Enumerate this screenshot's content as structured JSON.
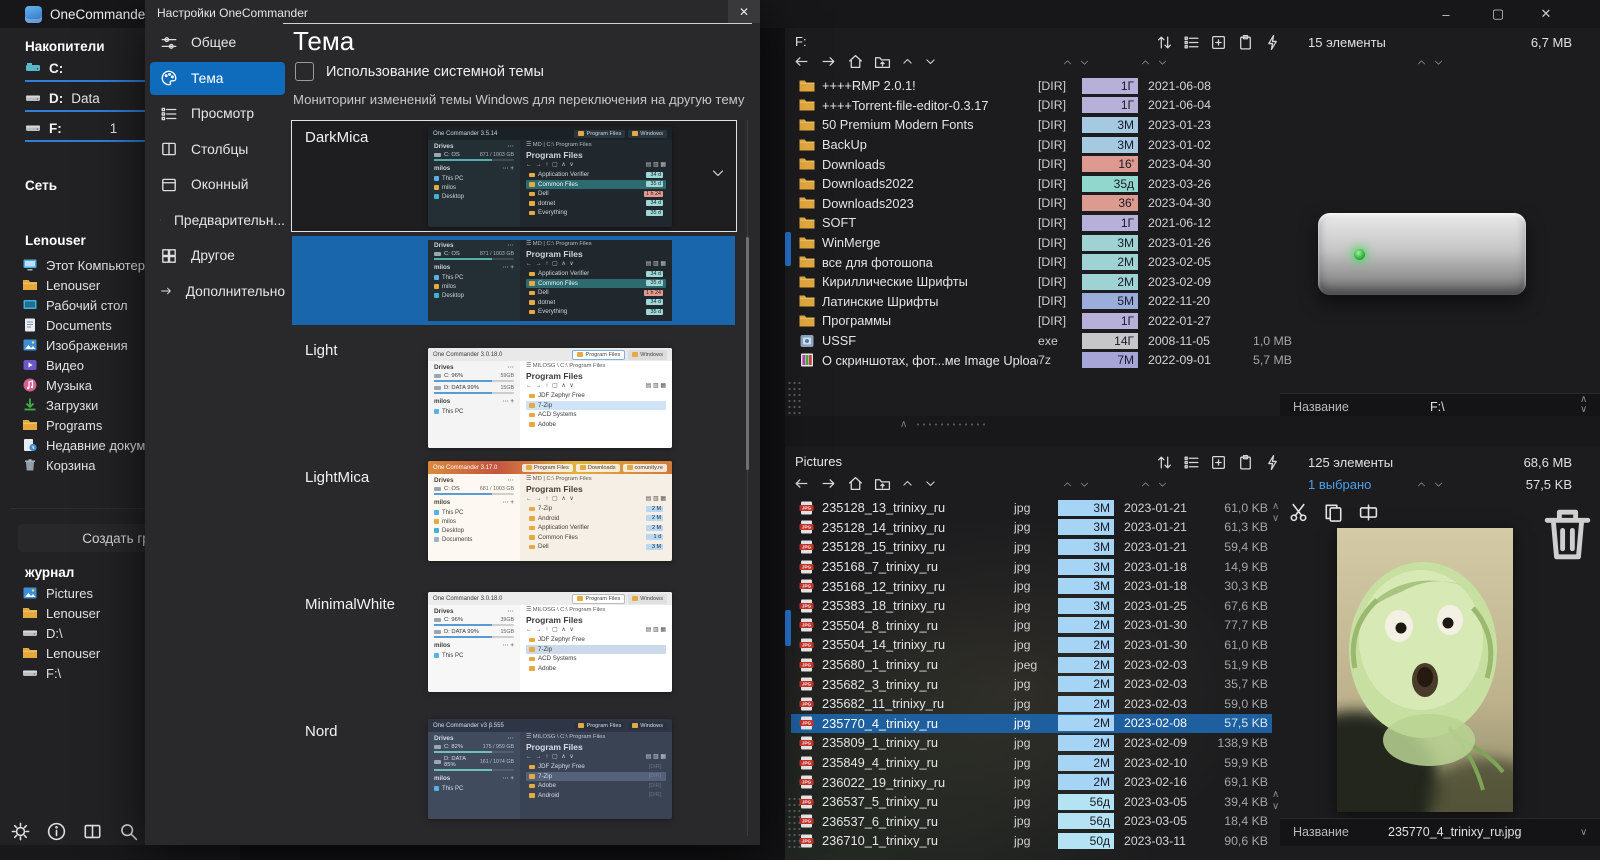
{
  "window": {
    "title": "OneCommander",
    "minimize": "–",
    "maximize": "▢",
    "close": "✕"
  },
  "sidebar": {
    "drives_header": "Накопители",
    "drives": [
      {
        "letter": "C:",
        "label": "",
        "extra": "",
        "icon": "drivec",
        "fill": 95
      },
      {
        "letter": "D:",
        "label": "Data",
        "extra": "",
        "icon": "drive",
        "fill": 97
      },
      {
        "letter": "F:",
        "label": "",
        "extra": "1",
        "icon": "drive",
        "fill": 90
      }
    ],
    "network_header": "Сеть",
    "user_header": "Lenouser",
    "items": [
      {
        "icon": "computer",
        "label": "Этот Компьютер"
      },
      {
        "icon": "folder",
        "label": "Lenouser"
      },
      {
        "icon": "desktop",
        "label": "Рабочий стол"
      },
      {
        "icon": "doc",
        "label": "Documents"
      },
      {
        "icon": "pic",
        "label": "Изображения"
      },
      {
        "icon": "video",
        "label": "Видео"
      },
      {
        "icon": "music",
        "label": "Музыка"
      },
      {
        "icon": "down",
        "label": "Загрузки"
      },
      {
        "icon": "folder",
        "label": "Programs"
      },
      {
        "icon": "recent",
        "label": "Недавние документ"
      },
      {
        "icon": "bin",
        "label": "Корзина"
      }
    ],
    "create_group_label": "Создать груп",
    "journal_header": "журнал",
    "journal_items": [
      {
        "icon": "pic",
        "label": "Pictures"
      },
      {
        "icon": "folder",
        "label": "Lenouser"
      },
      {
        "icon": "drive",
        "label": "D:\\"
      },
      {
        "icon": "folder",
        "label": "Lenouser"
      },
      {
        "icon": "drive",
        "label": "F:\\"
      }
    ],
    "footer_icons": [
      "gear",
      "info",
      "split",
      "search",
      "robot",
      "newtab"
    ]
  },
  "dialog": {
    "title": "Настройки OneCommander",
    "close": "✕",
    "tabs": [
      {
        "label": "Общее",
        "icon": "sliders",
        "selected": false
      },
      {
        "label": "Тема",
        "icon": "palette",
        "selected": true
      },
      {
        "label": "Просмотр",
        "icon": "viewlist",
        "selected": false
      },
      {
        "label": "Столбцы",
        "icon": "columns",
        "selected": false
      },
      {
        "label": "Оконный",
        "icon": "windowpane",
        "selected": false
      },
      {
        "label": "Предварительн...",
        "icon": "eye",
        "selected": false
      },
      {
        "label": "Другое",
        "icon": "grid4",
        "selected": false
      },
      {
        "label": "Дополнительно",
        "icon": "arrowr",
        "selected": false
      }
    ],
    "heading": "Тема",
    "checkbox_label": "Использование системной темы",
    "checkbox_checked": false,
    "caption": "Мониторинг изменений темы Windows для переключения на другую тему",
    "themes": [
      {
        "name": "DarkMica",
        "variant": "dark",
        "style": "boxed"
      },
      {
        "name": "",
        "variant": "dark",
        "style": "selected"
      },
      {
        "name": "Light",
        "variant": "light",
        "style": "plain"
      },
      {
        "name": "LightMica",
        "variant": "lightmica",
        "style": "plain"
      },
      {
        "name": "MinimalWhite",
        "variant": "minimal",
        "style": "plain"
      },
      {
        "name": "Nord",
        "variant": "nord",
        "style": "plain"
      }
    ],
    "previews": {
      "dark": {
        "app": "One Commander 3.5.14",
        "tabs": [
          "Program Files",
          "Windows"
        ],
        "path": "MD | C:\\ Program Files",
        "folder": "Program Files",
        "drives_label": "Drives",
        "drives": [
          [
            "C: OS",
            "871 / 1003 GB"
          ]
        ],
        "user": "milos",
        "items": [
          [
            "pc",
            "This PC"
          ],
          [
            "folder",
            "milos"
          ],
          [
            "desktop",
            "Desktop"
          ]
        ],
        "files": [
          {
            "n": "Application Verifier",
            "b": "34 d",
            "c": "teal"
          },
          {
            "n": "Common Files",
            "b": "35 d",
            "c": "teal",
            "sel": true
          },
          {
            "n": "Dell",
            "b": "1 h 24",
            "c": "red"
          },
          {
            "n": "dotnet",
            "b": "34 d",
            "c": "teal"
          },
          {
            "n": "Everything",
            "b": "35 d",
            "c": "teal"
          }
        ]
      },
      "light": {
        "app": "One Commander 3.0.18.0",
        "tabs": [
          "Program Files",
          "Windows"
        ],
        "path": "MILOSG \\ C:\\ Program Files",
        "folder": "Program Files",
        "drives_label": "Drives",
        "drives": [
          [
            "C:  96%",
            "59GB"
          ],
          [
            "D:  DATA  99%",
            "15GB"
          ]
        ],
        "user": "milos",
        "items": [
          [
            "pc",
            "This PC"
          ]
        ],
        "files": [
          {
            "n": "JDF Zephyr Free"
          },
          {
            "n": "7-Zip",
            "sel": true
          },
          {
            "n": "ACD Systems"
          },
          {
            "n": "Adobe"
          }
        ]
      },
      "lightmica": {
        "app": "One Commander 3.17.0",
        "tabs": [
          "Program Files",
          "Downloads",
          "comunity.re"
        ],
        "path": "MD | C:\\ Program Files",
        "folder": "Program Files",
        "drives_label": "Drives",
        "drives": [
          [
            "C: OS",
            "681 / 1003 GB"
          ]
        ],
        "user": "milos",
        "items": [
          [
            "pc",
            "This PC"
          ],
          [
            "folder",
            "milos"
          ],
          [
            "desktop",
            "Desktop"
          ],
          [
            "docs",
            "Documents"
          ]
        ],
        "files": [
          {
            "n": "7-Zip",
            "b": "2 M",
            "c": "blue"
          },
          {
            "n": "Android",
            "b": "2 M",
            "c": "blue"
          },
          {
            "n": "Application Verifier",
            "b": "2 M",
            "c": "blue"
          },
          {
            "n": "Common Files",
            "b": "1 d",
            "c": "blue"
          },
          {
            "n": "Dell",
            "b": "3 M",
            "c": "blue"
          }
        ]
      },
      "minimal": {
        "app": "One Commander 3.0.18.0",
        "tabs": [
          "Program Files",
          "Windows"
        ],
        "path": "MILOSG \\ C:\\ Program Files",
        "folder": "Program Files",
        "drives_label": "Drives",
        "drives": [
          [
            "C:  96%",
            "39GB"
          ],
          [
            "D:  DATA  99%",
            "15GB"
          ]
        ],
        "user": "milos",
        "items": [
          [
            "pc",
            "This PC"
          ]
        ],
        "files": [
          {
            "n": "JDF Zephyr Free"
          },
          {
            "n": "7-Zip",
            "sel": true
          },
          {
            "n": "ACD Systems"
          },
          {
            "n": "Adobe"
          }
        ]
      },
      "nord": {
        "app": "One Commander v3 β.555",
        "tabs": [
          "Program Files",
          "Windows"
        ],
        "path": "MILOSG \\ C:\\ Program Files",
        "folder": "Program Files",
        "drives_label": "Drives",
        "drives": [
          [
            "C:  82%",
            "175 / 959 GB"
          ],
          [
            "D:  DATA  85%",
            "161 / 1074 GB"
          ]
        ],
        "user": "milos",
        "items": [
          [
            "pc",
            "This PC"
          ]
        ],
        "files": [
          {
            "n": "JDF Zephyr Free",
            "b": "[DIR]",
            "c": "dim"
          },
          {
            "n": "7-Zip",
            "b": "[DIR]",
            "c": "dim",
            "sel": true
          },
          {
            "n": "Adobe",
            "b": "[DIR]",
            "c": "dim"
          },
          {
            "n": "Android",
            "b": "[DIR]",
            "c": "dim"
          }
        ]
      }
    }
  },
  "panel_top": {
    "tab": "F:",
    "toolbar_icons": [
      "sort",
      "viewlist",
      "addtab",
      "clipboard",
      "bolt"
    ],
    "nav_icons": [
      "back",
      "fwd",
      "home",
      "folderup",
      "chevup",
      "chevdown"
    ],
    "items_count": "15 элементы",
    "total_size": "6,7 MB",
    "name_label": "Название",
    "name_value": "F:\\",
    "rows": [
      {
        "name": "++++RMP 2.0.1!",
        "icon": "folder",
        "ext": "[DIR]",
        "badge": "1Г",
        "badge_color": "#b7b1d9",
        "date": "2021-06-08",
        "size": ""
      },
      {
        "name": "++++Torrent-file-editor-0.3.17",
        "icon": "folder",
        "ext": "[DIR]",
        "badge": "1Г",
        "badge_color": "#b7b1d9",
        "date": "2021-06-04",
        "size": ""
      },
      {
        "name": "50 Premium Modern Fonts",
        "icon": "folder",
        "ext": "[DIR]",
        "badge": "3М",
        "badge_color": "#a4c9e1",
        "date": "2023-01-23",
        "size": ""
      },
      {
        "name": "BackUp",
        "icon": "folder",
        "ext": "[DIR]",
        "badge": "3М",
        "badge_color": "#a4c9e1",
        "date": "2023-01-02",
        "size": ""
      },
      {
        "name": "Downloads",
        "icon": "folder",
        "ext": "[DIR]",
        "badge": "16'",
        "badge_color": "#dd9a90",
        "date": "2023-04-30",
        "size": ""
      },
      {
        "name": "Downloads2022",
        "icon": "folder",
        "ext": "[DIR]",
        "badge": "35д",
        "badge_color": "#92d7ce",
        "date": "2023-03-26",
        "size": ""
      },
      {
        "name": "Downloads2023",
        "icon": "folder",
        "ext": "[DIR]",
        "badge": "36'",
        "badge_color": "#dd9a90",
        "date": "2023-04-30",
        "size": ""
      },
      {
        "name": "SOFT",
        "icon": "folder",
        "ext": "[DIR]",
        "badge": "1Г",
        "badge_color": "#b7b1d9",
        "date": "2021-06-12",
        "size": ""
      },
      {
        "name": "WinMerge",
        "icon": "folder",
        "ext": "[DIR]",
        "badge": "3М",
        "badge_color": "#9fd3d3",
        "date": "2023-01-26",
        "size": ""
      },
      {
        "name": "все для фотошопа",
        "icon": "folder",
        "ext": "[DIR]",
        "badge": "2М",
        "badge_color": "#9fd3d3",
        "date": "2023-02-05",
        "size": ""
      },
      {
        "name": "Кириллические Шрифты",
        "icon": "folder",
        "ext": "[DIR]",
        "badge": "2М",
        "badge_color": "#9fd3d3",
        "date": "2023-02-09",
        "size": ""
      },
      {
        "name": "Латинские Шрифты",
        "icon": "folder",
        "ext": "[DIR]",
        "badge": "5М",
        "badge_color": "#9badda",
        "date": "2022-11-20",
        "size": ""
      },
      {
        "name": "Программы",
        "icon": "folder",
        "ext": "[DIR]",
        "badge": "1Г",
        "badge_color": "#b7b1d9",
        "date": "2022-01-27",
        "size": ""
      },
      {
        "name": "USSF",
        "icon": "exe",
        "ext": "exe",
        "badge": "14Г",
        "badge_color": "#c7c7c9",
        "date": "2008-11-05",
        "size": "1,0 MB"
      },
      {
        "name": "О скриншотах, фот...ме Image Uploader",
        "icon": "zip",
        "ext": "7z",
        "badge": "7М",
        "badge_color": "#a7a5d8",
        "date": "2022-09-01",
        "size": "5,7 MB"
      }
    ]
  },
  "panel_bottom": {
    "tab": "Pictures",
    "toolbar_icons": [
      "sort",
      "viewlist",
      "addtab",
      "clipboard",
      "bolt"
    ],
    "nav_icons": [
      "back",
      "fwd",
      "home",
      "folderup",
      "chevup",
      "chevdown"
    ],
    "items_count": "125 элементы",
    "total_size": "68,6 MB",
    "selected_info": "1 выбрано",
    "selected_size": "57,5 KB",
    "selection_icons": [
      "cut",
      "copy",
      "rename"
    ],
    "trash_icon": "trash",
    "name_label": "Название",
    "name_value": "235770_4_trinixy_ru.jpg",
    "selected_accent": "#4aa0e8",
    "rows": [
      {
        "name": "235128_13_trinixy_ru",
        "icon": "jpg",
        "ext": "jpg",
        "badge": "3М",
        "badge_color": "#a6d4f5",
        "date": "2023-01-21",
        "size": "61,0 KB"
      },
      {
        "name": "235128_14_trinixy_ru",
        "icon": "jpg",
        "ext": "jpg",
        "badge": "3М",
        "badge_color": "#a6d4f5",
        "date": "2023-01-21",
        "size": "61,3 KB"
      },
      {
        "name": "235128_15_trinixy_ru",
        "icon": "jpg",
        "ext": "jpg",
        "badge": "3М",
        "badge_color": "#a6d4f5",
        "date": "2023-01-21",
        "size": "59,4 KB"
      },
      {
        "name": "235168_7_trinixy_ru",
        "icon": "jpg",
        "ext": "jpg",
        "badge": "3М",
        "badge_color": "#a6d4f5",
        "date": "2023-01-18",
        "size": "14,9 KB"
      },
      {
        "name": "235168_12_trinixy_ru",
        "icon": "jpg",
        "ext": "jpg",
        "badge": "3М",
        "badge_color": "#a6d4f5",
        "date": "2023-01-18",
        "size": "30,3 KB"
      },
      {
        "name": "235383_18_trinixy_ru",
        "icon": "jpg",
        "ext": "jpg",
        "badge": "3М",
        "badge_color": "#a6d4f5",
        "date": "2023-01-25",
        "size": "67,6 KB"
      },
      {
        "name": "235504_8_trinixy_ru",
        "icon": "jpg",
        "ext": "jpg",
        "badge": "2М",
        "badge_color": "#a6d4f5",
        "date": "2023-01-30",
        "size": "77,7 KB"
      },
      {
        "name": "235504_14_trinixy_ru",
        "icon": "jpg",
        "ext": "jpg",
        "badge": "2М",
        "badge_color": "#a6d4f5",
        "date": "2023-01-30",
        "size": "61,0 KB"
      },
      {
        "name": "235680_1_trinixy_ru",
        "icon": "jpg",
        "ext": "jpeg",
        "badge": "2М",
        "badge_color": "#a6d4f5",
        "date": "2023-02-03",
        "size": "51,9 KB"
      },
      {
        "name": "235682_3_trinixy_ru",
        "icon": "jpg",
        "ext": "jpg",
        "badge": "2М",
        "badge_color": "#a6d4f5",
        "date": "2023-02-03",
        "size": "35,7 KB"
      },
      {
        "name": "235682_11_trinixy_ru",
        "icon": "jpg",
        "ext": "jpg",
        "badge": "2М",
        "badge_color": "#a6d4f5",
        "date": "2023-02-03",
        "size": "59,0 KB"
      },
      {
        "name": "235770_4_trinixy_ru",
        "icon": "jpg",
        "ext": "jpg",
        "badge": "2М",
        "badge_color": "#a6d4f5",
        "date": "2023-02-08",
        "size": "57,5 KB",
        "selected": true
      },
      {
        "name": "235809_1_trinixy_ru",
        "icon": "jpg",
        "ext": "jpg",
        "badge": "2М",
        "badge_color": "#a6d4f5",
        "date": "2023-02-09",
        "size": "138,9 KB"
      },
      {
        "name": "235849_4_trinixy_ru",
        "icon": "jpg",
        "ext": "jpg",
        "badge": "2М",
        "badge_color": "#a6d4f5",
        "date": "2023-02-10",
        "size": "59,9 KB"
      },
      {
        "name": "236022_19_trinixy_ru",
        "icon": "jpg",
        "ext": "jpg",
        "badge": "2М",
        "badge_color": "#a6d4f5",
        "date": "2023-02-16",
        "size": "69,1 KB"
      },
      {
        "name": "236537_5_trinixy_ru",
        "icon": "jpg",
        "ext": "jpg",
        "badge": "56д",
        "badge_color": "#b4e3f3",
        "date": "2023-03-05",
        "size": "39,4 KB"
      },
      {
        "name": "236537_6_trinixy_ru",
        "icon": "jpg",
        "ext": "jpg",
        "badge": "56д",
        "badge_color": "#b4e3f3",
        "date": "2023-03-05",
        "size": "18,4 KB"
      },
      {
        "name": "236710_1_trinixy_ru",
        "icon": "jpg",
        "ext": "jpg",
        "badge": "50д",
        "badge_color": "#b4e3f3",
        "date": "2023-03-11",
        "size": "90,6 KB"
      }
    ]
  }
}
